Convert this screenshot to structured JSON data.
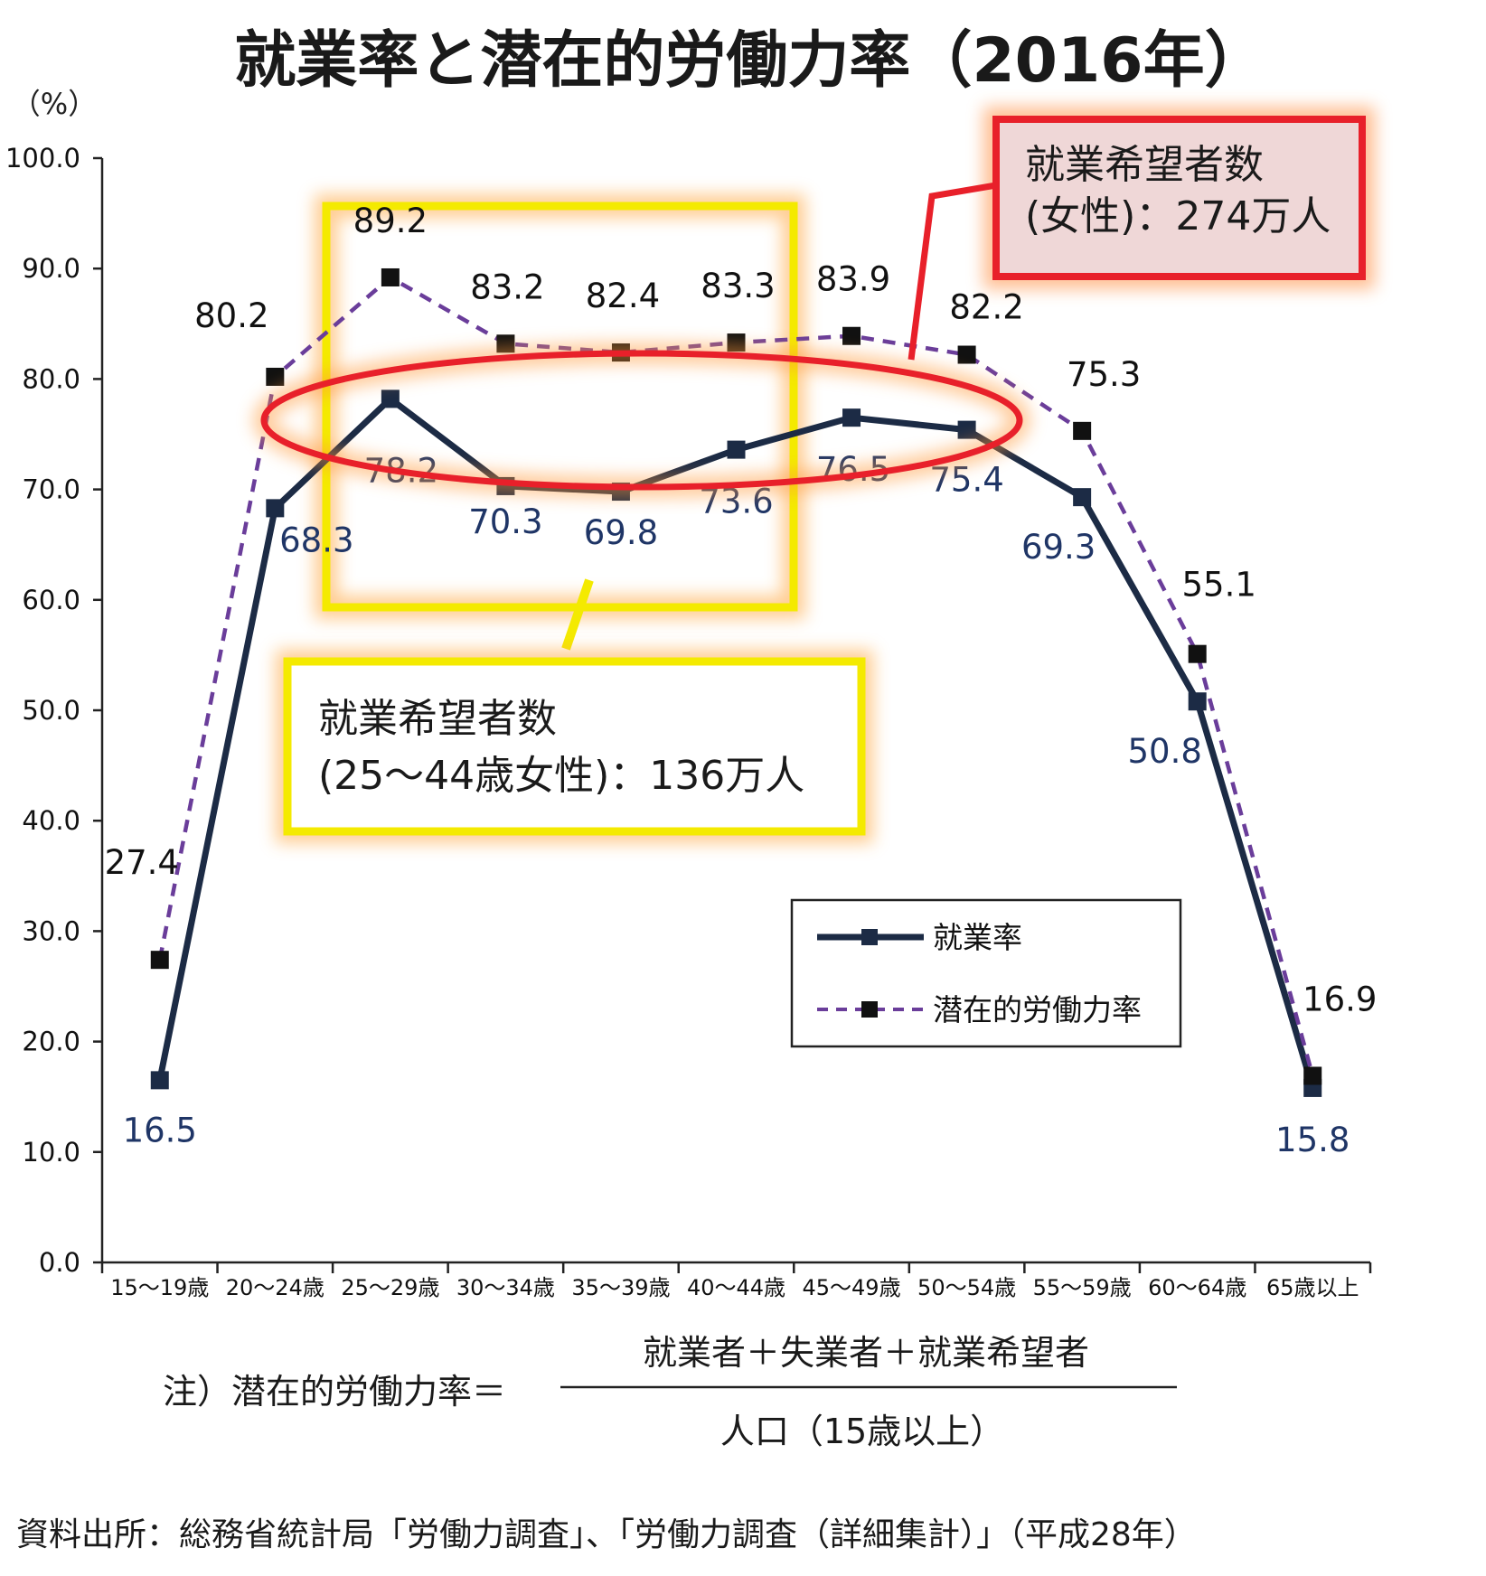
{
  "chart_data": {
    "type": "line",
    "title": "就業率と潜在的労働力率（2016年）",
    "ylabel": "（%）",
    "ylim": [
      0,
      100
    ],
    "yticks": [
      "0.0",
      "10.0",
      "20.0",
      "30.0",
      "40.0",
      "50.0",
      "60.0",
      "70.0",
      "80.0",
      "90.0",
      "100.0"
    ],
    "categories": [
      "15～19歳",
      "20～24歳",
      "25～29歳",
      "30～34歳",
      "35～39歳",
      "40～44歳",
      "45～49歳",
      "50～54歳",
      "55～59歳",
      "60～64歳",
      "65歳以上"
    ],
    "series": [
      {
        "name": "就業率",
        "values": [
          16.5,
          68.3,
          78.2,
          70.3,
          69.8,
          73.6,
          76.5,
          75.4,
          69.3,
          50.8,
          15.8
        ],
        "labels": [
          "16.5",
          "68.3",
          "78.2",
          "70.3",
          "69.8",
          "73.6",
          "76.5",
          "75.4",
          "69.3",
          "50.8",
          "15.8"
        ],
        "color": "#1c2b45",
        "style": "solid"
      },
      {
        "name": "潜在的労働力率",
        "values": [
          27.4,
          80.2,
          89.2,
          83.2,
          82.4,
          83.3,
          83.9,
          82.2,
          75.3,
          55.1,
          16.9
        ],
        "labels": [
          "27.4",
          "80.2",
          "89.2",
          "83.2",
          "82.4",
          "83.3",
          "83.9",
          "82.2",
          "75.3",
          "55.1",
          "16.9"
        ],
        "color": "#6a3d9a",
        "style": "dashed"
      }
    ],
    "legend_position": "bottom-right",
    "grid": false,
    "annotations": [
      {
        "line1": "就業希望者数",
        "line2": "(女性)：274万人",
        "color": "#e8202a"
      },
      {
        "line1": "就業希望者数",
        "line2": "(25～44歳女性)：136万人",
        "color": "#f4ea00"
      }
    ]
  },
  "note": {
    "prefix": "注）潜在的労働力率＝",
    "numerator": "就業者＋失業者＋就業希望者",
    "denominator": "人口（15歳以上）"
  },
  "source": "資料出所：総務省統計局「労働力調査」、「労働力調査（詳細集計）」（平成28年）",
  "colors": {
    "employment": "#1c2b45",
    "potential": "#6a3d9a",
    "red": "#e8202a",
    "yellow": "#f4ea00",
    "glow": "#ff9a2e"
  }
}
